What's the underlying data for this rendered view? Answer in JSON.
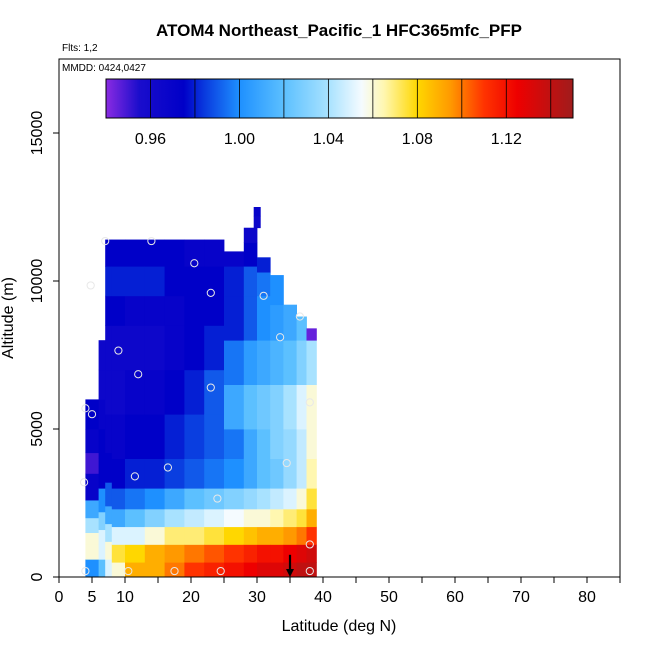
{
  "chart_data": {
    "type": "heatmap",
    "title": "ATOM4 Northeast_Pacific_1 HFC365mfc_PFP",
    "flights_label": "Flts: 1,2",
    "dates_label": "MMDD: 0424,0427",
    "xlabel": "Latitude (deg N)",
    "ylabel": "Altitude (m)",
    "xlim": [
      0,
      85
    ],
    "ylim": [
      0,
      17500
    ],
    "x_ticks": [
      0,
      5,
      10,
      20,
      30,
      40,
      50,
      60,
      70,
      80
    ],
    "y_ticks": [
      0,
      5000,
      10000,
      15000
    ],
    "grid": false,
    "colorbar": {
      "position": "top",
      "min": 0.94,
      "max": 1.15,
      "tick_values": [
        0.96,
        1.0,
        1.04,
        1.08,
        1.12
      ],
      "tick_labels": [
        "0.96",
        "1.00",
        "1.04",
        "1.08",
        "1.12"
      ],
      "stops": [
        {
          "v": 0.94,
          "c": "#8a2be2"
        },
        {
          "v": 0.955,
          "c": "#1a0dcc"
        },
        {
          "v": 0.975,
          "c": "#0000c8"
        },
        {
          "v": 0.985,
          "c": "#0a3ee0"
        },
        {
          "v": 1.0,
          "c": "#1e90ff"
        },
        {
          "v": 1.02,
          "c": "#5cc0ff"
        },
        {
          "v": 1.04,
          "c": "#a8e2ff"
        },
        {
          "v": 1.055,
          "c": "#f5fbff"
        },
        {
          "v": 1.065,
          "c": "#fff7b0"
        },
        {
          "v": 1.08,
          "c": "#ffd700"
        },
        {
          "v": 1.095,
          "c": "#ff9900"
        },
        {
          "v": 1.11,
          "c": "#ff3300"
        },
        {
          "v": 1.125,
          "c": "#ee0000"
        },
        {
          "v": 1.15,
          "c": "#a01c1c"
        }
      ]
    },
    "columns": [
      {
        "lat": [
          4,
          6
        ],
        "alt_top": 6000,
        "cells": [
          [
            0,
            1.0
          ],
          [
            600,
            1.06
          ],
          [
            1100,
            1.06
          ],
          [
            1500,
            1.04
          ],
          [
            2000,
            1.01
          ],
          [
            2600,
            0.97
          ],
          [
            3500,
            0.95
          ],
          [
            4200,
            0.97
          ],
          [
            5000,
            0.975
          ],
          [
            5600,
            0.975
          ]
        ]
      },
      {
        "lat": [
          6,
          7
        ],
        "alt_top": 8000,
        "cells": [
          [
            0,
            1.02
          ],
          [
            600,
            1.05
          ],
          [
            1100,
            1.05
          ],
          [
            1600,
            1.03
          ],
          [
            2200,
            1.0
          ],
          [
            3000,
            0.975
          ],
          [
            4000,
            0.975
          ],
          [
            5000,
            0.97
          ],
          [
            6000,
            0.965
          ],
          [
            7000,
            0.965
          ]
        ]
      },
      {
        "lat": [
          7,
          8
        ],
        "alt_top": 11400,
        "cells": [
          [
            0,
            1.05
          ],
          [
            600,
            1.06
          ],
          [
            1200,
            1.04
          ],
          [
            1800,
            1.01
          ],
          [
            2400,
            0.99
          ],
          [
            3200,
            0.975
          ],
          [
            4200,
            0.97
          ],
          [
            5500,
            0.965
          ],
          [
            7000,
            0.965
          ],
          [
            8500,
            0.975
          ],
          [
            9500,
            0.98
          ],
          [
            10500,
            0.975
          ]
        ]
      },
      {
        "lat": [
          8,
          10
        ],
        "alt_top": 11400,
        "cells": [
          [
            0,
            1.06
          ],
          [
            500,
            1.075
          ],
          [
            1100,
            1.05
          ],
          [
            1700,
            1.01
          ],
          [
            2300,
            0.99
          ],
          [
            3000,
            0.975
          ],
          [
            4000,
            0.97
          ],
          [
            5500,
            0.965
          ],
          [
            7000,
            0.965
          ],
          [
            8500,
            0.975
          ],
          [
            9500,
            0.98
          ],
          [
            10500,
            0.975
          ]
        ]
      },
      {
        "lat": [
          10,
          13
        ],
        "alt_top": 11400,
        "cells": [
          [
            0,
            1.09
          ],
          [
            500,
            1.08
          ],
          [
            1100,
            1.05
          ],
          [
            1700,
            1.02
          ],
          [
            2300,
            0.995
          ],
          [
            3000,
            0.98
          ],
          [
            4000,
            0.975
          ],
          [
            5500,
            0.97
          ],
          [
            7000,
            0.965
          ],
          [
            8500,
            0.97
          ],
          [
            9500,
            0.98
          ],
          [
            10500,
            0.975
          ]
        ]
      },
      {
        "lat": [
          13,
          16
        ],
        "alt_top": 11400,
        "cells": [
          [
            0,
            1.09
          ],
          [
            500,
            1.09
          ],
          [
            1100,
            1.06
          ],
          [
            1700,
            1.03
          ],
          [
            2300,
            1.0
          ],
          [
            3000,
            0.98
          ],
          [
            4000,
            0.975
          ],
          [
            5500,
            0.97
          ],
          [
            7000,
            0.965
          ],
          [
            8500,
            0.97
          ],
          [
            9500,
            0.98
          ],
          [
            10500,
            0.975
          ]
        ]
      },
      {
        "lat": [
          16,
          19
        ],
        "alt_top": 11400,
        "cells": [
          [
            0,
            1.1
          ],
          [
            500,
            1.095
          ],
          [
            1100,
            1.07
          ],
          [
            1700,
            1.04
          ],
          [
            2300,
            1.01
          ],
          [
            3000,
            0.985
          ],
          [
            4000,
            0.98
          ],
          [
            5500,
            0.975
          ],
          [
            7000,
            0.97
          ],
          [
            8500,
            0.97
          ],
          [
            9500,
            0.975
          ],
          [
            10500,
            0.975
          ]
        ]
      },
      {
        "lat": [
          19,
          22
        ],
        "alt_top": 11400,
        "cells": [
          [
            0,
            1.11
          ],
          [
            500,
            1.1
          ],
          [
            1100,
            1.07
          ],
          [
            1700,
            1.045
          ],
          [
            2300,
            1.02
          ],
          [
            3000,
            0.99
          ],
          [
            4000,
            0.985
          ],
          [
            5500,
            0.98
          ],
          [
            7000,
            0.975
          ],
          [
            8500,
            0.975
          ],
          [
            9500,
            0.975
          ],
          [
            10500,
            0.97
          ]
        ]
      },
      {
        "lat": [
          22,
          25
        ],
        "alt_top": 11400,
        "cells": [
          [
            0,
            1.115
          ],
          [
            500,
            1.105
          ],
          [
            1100,
            1.075
          ],
          [
            1700,
            1.05
          ],
          [
            2300,
            1.025
          ],
          [
            3000,
            0.995
          ],
          [
            4000,
            0.99
          ],
          [
            5500,
            0.99
          ],
          [
            7000,
            0.98
          ],
          [
            8500,
            0.975
          ],
          [
            9500,
            0.975
          ],
          [
            10500,
            0.97
          ]
        ]
      },
      {
        "lat": [
          25,
          28
        ],
        "alt_top": 11000,
        "cells": [
          [
            0,
            1.12
          ],
          [
            500,
            1.11
          ],
          [
            1100,
            1.08
          ],
          [
            1700,
            1.055
          ],
          [
            2300,
            1.03
          ],
          [
            3000,
            1.0
          ],
          [
            4000,
            0.995
          ],
          [
            5000,
            1.01
          ],
          [
            6500,
            0.995
          ],
          [
            8000,
            0.98
          ],
          [
            9500,
            0.98
          ],
          [
            10500,
            0.97
          ]
        ]
      },
      {
        "lat": [
          28,
          30
        ],
        "alt_top": 11800,
        "cells": [
          [
            0,
            1.125
          ],
          [
            500,
            1.115
          ],
          [
            1100,
            1.085
          ],
          [
            1700,
            1.06
          ],
          [
            2300,
            1.035
          ],
          [
            3000,
            1.01
          ],
          [
            4000,
            1.01
          ],
          [
            5000,
            1.02
          ],
          [
            6500,
            1.005
          ],
          [
            8000,
            0.99
          ],
          [
            9500,
            0.99
          ],
          [
            10500,
            0.975
          ],
          [
            11300,
            0.965
          ]
        ]
      },
      {
        "lat": [
          30,
          32
        ],
        "alt_top": 10800,
        "cells": [
          [
            0,
            1.13
          ],
          [
            500,
            1.12
          ],
          [
            1100,
            1.09
          ],
          [
            1700,
            1.06
          ],
          [
            2300,
            1.04
          ],
          [
            3000,
            1.02
          ],
          [
            4000,
            1.02
          ],
          [
            5000,
            1.025
          ],
          [
            6500,
            1.01
          ],
          [
            8000,
            1.0
          ],
          [
            9500,
            0.995
          ],
          [
            10300,
            0.98
          ]
        ]
      },
      {
        "lat": [
          32,
          34
        ],
        "alt_top": 10200,
        "cells": [
          [
            0,
            1.13
          ],
          [
            500,
            1.12
          ],
          [
            1100,
            1.09
          ],
          [
            1700,
            1.065
          ],
          [
            2300,
            1.045
          ],
          [
            3000,
            1.025
          ],
          [
            4000,
            1.03
          ],
          [
            5000,
            1.03
          ],
          [
            6500,
            1.015
          ],
          [
            8000,
            1.005
          ],
          [
            9200,
            1.0
          ]
        ]
      },
      {
        "lat": [
          34,
          36
        ],
        "alt_top": 9200,
        "cells": [
          [
            0,
            1.135
          ],
          [
            500,
            1.125
          ],
          [
            1100,
            1.095
          ],
          [
            1700,
            1.07
          ],
          [
            2300,
            1.05
          ],
          [
            3000,
            1.035
          ],
          [
            4000,
            1.035
          ],
          [
            5000,
            1.04
          ],
          [
            6500,
            1.02
          ],
          [
            8000,
            1.01
          ],
          [
            8800,
            1.01
          ]
        ]
      },
      {
        "lat": [
          36,
          37.5
        ],
        "alt_top": 8800,
        "cells": [
          [
            0,
            1.14
          ],
          [
            500,
            1.13
          ],
          [
            1100,
            1.1
          ],
          [
            1700,
            1.075
          ],
          [
            2300,
            1.06
          ],
          [
            3000,
            1.045
          ],
          [
            4000,
            1.045
          ],
          [
            5000,
            1.05
          ],
          [
            6500,
            1.03
          ],
          [
            8000,
            1.02
          ]
        ]
      },
      {
        "lat": [
          37.5,
          39
        ],
        "alt_top": 8400,
        "cells": [
          [
            0,
            1.14
          ],
          [
            500,
            1.135
          ],
          [
            1100,
            1.11
          ],
          [
            1700,
            1.09
          ],
          [
            2300,
            1.075
          ],
          [
            3000,
            1.065
          ],
          [
            4000,
            1.06
          ],
          [
            5000,
            1.06
          ],
          [
            6500,
            1.04
          ],
          [
            8000,
            0.945
          ]
        ]
      },
      {
        "lat": [
          29.5,
          30.5
        ],
        "alt_top": 12500,
        "cells": [
          [
            11800,
            0.965
          ],
          [
            12200,
            0.97
          ]
        ]
      }
    ],
    "points": [
      {
        "lat": 4,
        "alt": 200
      },
      {
        "lat": 10.5,
        "alt": 200
      },
      {
        "lat": 17.5,
        "alt": 200
      },
      {
        "lat": 24.5,
        "alt": 200
      },
      {
        "lat": 38,
        "alt": 200
      },
      {
        "lat": 38,
        "alt": 1100
      },
      {
        "lat": 24,
        "alt": 2650
      },
      {
        "lat": 11.5,
        "alt": 3400
      },
      {
        "lat": 3.8,
        "alt": 3200
      },
      {
        "lat": 16.5,
        "alt": 3700
      },
      {
        "lat": 34.5,
        "alt": 3850
      },
      {
        "lat": 5,
        "alt": 5500
      },
      {
        "lat": 4,
        "alt": 5700
      },
      {
        "lat": 23,
        "alt": 6400
      },
      {
        "lat": 38,
        "alt": 5900
      },
      {
        "lat": 12,
        "alt": 6850
      },
      {
        "lat": 9,
        "alt": 7650
      },
      {
        "lat": 33.5,
        "alt": 8100
      },
      {
        "lat": 36.5,
        "alt": 8800
      },
      {
        "lat": 31,
        "alt": 9500
      },
      {
        "lat": 23,
        "alt": 9600
      },
      {
        "lat": 4.8,
        "alt": 9850
      },
      {
        "lat": 20.5,
        "alt": 10600
      },
      {
        "lat": 7,
        "alt": 11350
      },
      {
        "lat": 14,
        "alt": 11350
      }
    ],
    "marker": {
      "lat": 35,
      "alt_from": 750,
      "alt_to": 0
    }
  }
}
